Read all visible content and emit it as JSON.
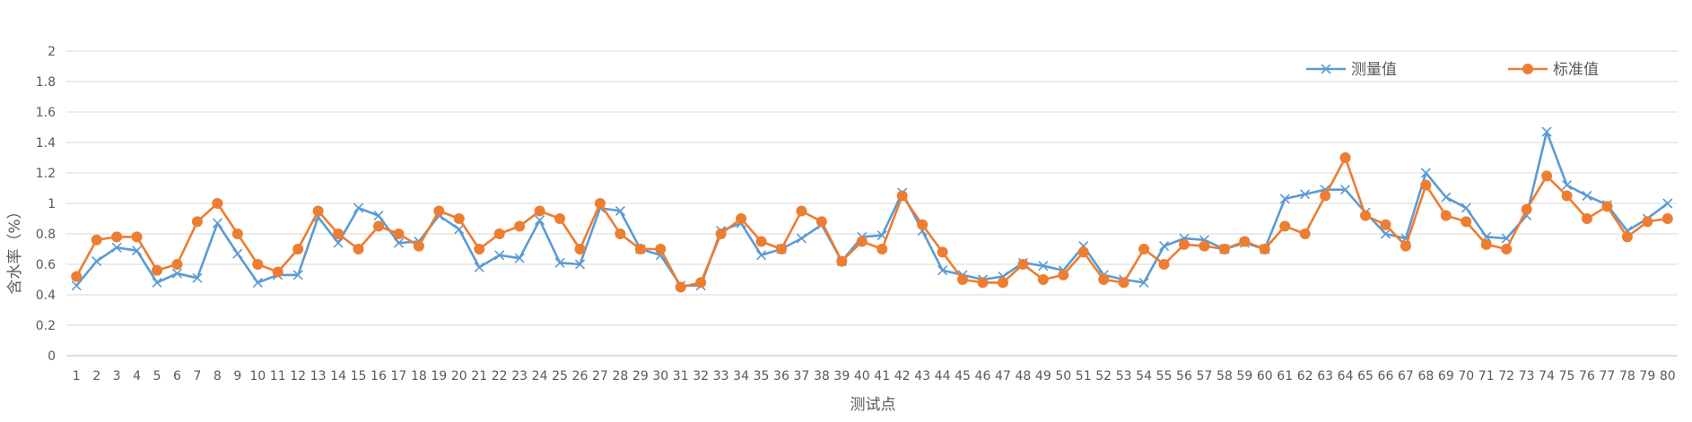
{
  "chart_data": {
    "type": "line",
    "title": "",
    "xlabel": "测试点",
    "ylabel": "含水率（%）",
    "ylim": [
      0,
      2
    ],
    "yticks": [
      "0",
      "0.2",
      "0.4",
      "0.6",
      "0.8",
      "1",
      "1.2",
      "1.4",
      "1.6",
      "1.8",
      "2"
    ],
    "grid": true,
    "legend_position": "top-right",
    "categories": [
      "1",
      "2",
      "3",
      "4",
      "5",
      "6",
      "7",
      "8",
      "9",
      "10",
      "11",
      "12",
      "13",
      "14",
      "15",
      "16",
      "17",
      "18",
      "19",
      "20",
      "21",
      "22",
      "23",
      "24",
      "25",
      "26",
      "27",
      "28",
      "29",
      "30",
      "31",
      "32",
      "33",
      "34",
      "35",
      "36",
      "37",
      "38",
      "39",
      "40",
      "41",
      "42",
      "43",
      "44",
      "45",
      "46",
      "47",
      "48",
      "49",
      "50",
      "51",
      "52",
      "53",
      "54",
      "55",
      "56",
      "57",
      "58",
      "59",
      "60",
      "61",
      "62",
      "63",
      "64",
      "65",
      "66",
      "67",
      "68",
      "69",
      "70",
      "71",
      "72",
      "73",
      "74",
      "75",
      "76",
      "77",
      "78",
      "79",
      "80"
    ],
    "series": [
      {
        "name": "测量值",
        "color": "#5B9BD5",
        "marker": "x",
        "values": [
          0.46,
          0.62,
          0.71,
          0.69,
          0.48,
          0.54,
          0.51,
          0.87,
          0.67,
          0.48,
          0.53,
          0.53,
          0.91,
          0.74,
          0.97,
          0.92,
          0.74,
          0.75,
          0.92,
          0.83,
          0.58,
          0.66,
          0.64,
          0.89,
          0.61,
          0.6,
          0.97,
          0.95,
          0.7,
          0.66,
          0.46,
          0.46,
          0.82,
          0.87,
          0.66,
          0.7,
          0.77,
          0.86,
          0.62,
          0.78,
          0.79,
          1.07,
          0.82,
          0.56,
          0.53,
          0.5,
          0.52,
          0.61,
          0.59,
          0.56,
          0.72,
          0.53,
          0.5,
          0.48,
          0.72,
          0.77,
          0.76,
          0.7,
          0.74,
          0.7,
          1.03,
          1.06,
          1.09,
          1.09,
          0.94,
          0.8,
          0.77,
          1.2,
          1.04,
          0.97,
          0.78,
          0.77,
          0.92,
          1.47,
          1.12,
          1.05,
          0.99,
          0.82,
          0.9,
          1.0
        ]
      },
      {
        "name": "标准值",
        "color": "#ED7D31",
        "marker": "circle",
        "values": [
          0.52,
          0.76,
          0.78,
          0.78,
          0.56,
          0.6,
          0.88,
          1.0,
          0.8,
          0.6,
          0.55,
          0.7,
          0.95,
          0.8,
          0.7,
          0.85,
          0.8,
          0.72,
          0.95,
          0.9,
          0.7,
          0.8,
          0.85,
          0.95,
          0.9,
          0.7,
          1.0,
          0.8,
          0.7,
          0.7,
          0.45,
          0.48,
          0.8,
          0.9,
          0.75,
          0.7,
          0.95,
          0.88,
          0.62,
          0.75,
          0.7,
          1.05,
          0.86,
          0.68,
          0.5,
          0.48,
          0.48,
          0.6,
          0.5,
          0.53,
          0.68,
          0.5,
          0.48,
          0.7,
          0.6,
          0.73,
          0.72,
          0.7,
          0.75,
          0.7,
          0.85,
          0.8,
          1.05,
          1.3,
          0.92,
          0.86,
          0.72,
          1.12,
          0.92,
          0.88,
          0.73,
          0.7,
          0.96,
          1.18,
          1.05,
          0.9,
          0.98,
          0.78,
          0.88,
          0.9
        ]
      }
    ]
  }
}
